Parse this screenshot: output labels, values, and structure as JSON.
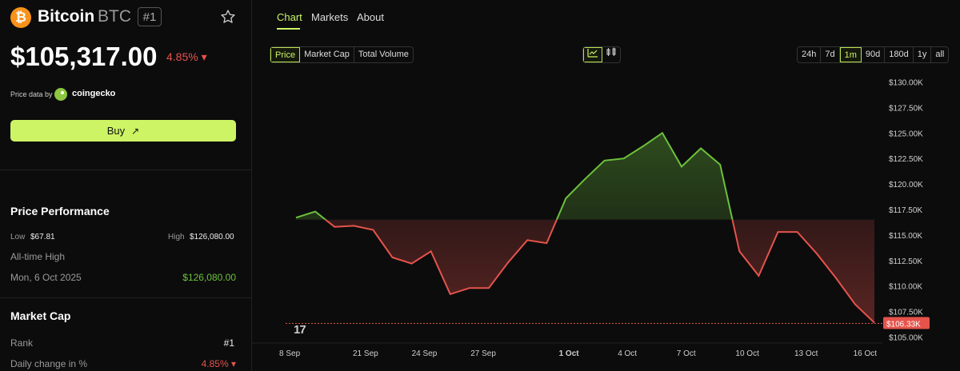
{
  "coin": {
    "logo_glyph": "₿",
    "name": "Bitcoin",
    "symbol": "BTC",
    "rank_badge": "#1",
    "price": "$105,317.00",
    "change": "4.85% ▾"
  },
  "price_source": {
    "label": "Price data by",
    "name": "coingecko"
  },
  "buy_label": "Buy",
  "buy_arrow": "↗",
  "performance": {
    "title": "Price Performance",
    "low_label": "Low",
    "low_value": "$67.81",
    "high_label": "High",
    "high_value": "$126,080.00",
    "ath_label": "All-time High",
    "ath_date": "Mon, 6 Oct 2025",
    "ath_value": "$126,080.00"
  },
  "market_cap": {
    "title": "Market Cap",
    "rank_label": "Rank",
    "rank_value": "#1",
    "daily_label": "Daily change in %",
    "daily_value": "4.85% ▾"
  },
  "tabs": [
    "Chart",
    "Markets",
    "About"
  ],
  "metric_buttons": [
    "Price",
    "Market Cap",
    "Total Volume"
  ],
  "range_buttons": [
    "24h",
    "7d",
    "1m",
    "90d",
    "180d",
    "1y",
    "all"
  ],
  "active_range": "1m",
  "colors": {
    "accent": "#ccf464",
    "up": "#6dc13c",
    "down": "#e5534b",
    "btc": "#f7931a"
  },
  "tv_logo": "17",
  "chart_data": {
    "type": "line",
    "x_ticks": [
      "8 Sep",
      "21 Sep",
      "24 Sep",
      "27 Sep",
      "1 Oct",
      "4 Oct",
      "7 Oct",
      "10 Oct",
      "13 Oct",
      "16 Oct"
    ],
    "y_ticks": [
      "$130.00K",
      "$127.50K",
      "$125.00K",
      "$122.50K",
      "$120.00K",
      "$117.50K",
      "$115.00K",
      "$112.50K",
      "$110.00K",
      "$107.50K",
      "$105.00K"
    ],
    "y_tick_values": [
      130000,
      127500,
      125000,
      122500,
      120000,
      117500,
      115000,
      112500,
      110000,
      107500,
      105000
    ],
    "ylim": [
      104800,
      130200
    ],
    "baseline": 116500,
    "last_label": "$106.33K",
    "last_value": 106330,
    "values": [
      116700,
      117300,
      115800,
      115900,
      115500,
      112800,
      112200,
      113400,
      109200,
      109800,
      109800,
      112300,
      114500,
      114200,
      118600,
      120500,
      122300,
      122500,
      123700,
      125000,
      121700,
      123500,
      121900,
      113400,
      111000,
      115300,
      115300,
      113200,
      110800,
      108200,
      106400
    ]
  }
}
